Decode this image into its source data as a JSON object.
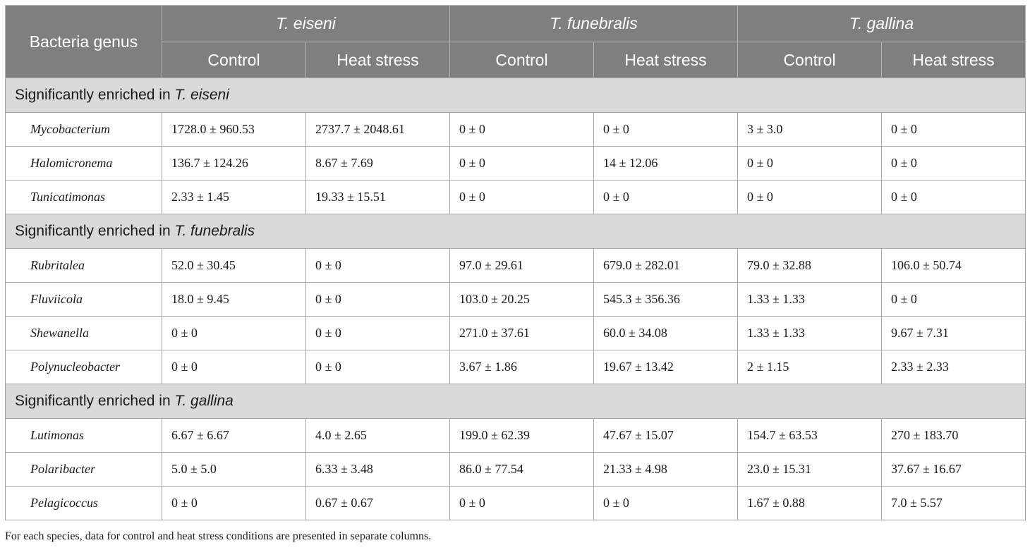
{
  "header": {
    "genus_label": "Bacteria genus",
    "species": [
      "T. eiseni",
      "T. funebralis",
      "T. gallina"
    ],
    "conditions": [
      "Control",
      "Heat stress",
      "Control",
      "Heat stress",
      "Control",
      "Heat stress"
    ]
  },
  "sections": [
    {
      "prefix": "Significantly enriched in ",
      "species": "T. eiseni",
      "rows": [
        {
          "genus": "Mycobacterium",
          "values": [
            "1728.0 ± 960.53",
            "2737.7 ± 2048.61",
            "0 ± 0",
            "0 ± 0",
            "3 ± 3.0",
            "0 ± 0"
          ]
        },
        {
          "genus": "Halomicronema",
          "values": [
            "136.7 ± 124.26",
            "8.67 ± 7.69",
            "0 ± 0",
            "14 ± 12.06",
            "0 ± 0",
            "0 ± 0"
          ]
        },
        {
          "genus": "Tunicatimonas",
          "values": [
            "2.33 ± 1.45",
            "19.33 ± 15.51",
            "0 ± 0",
            "0 ± 0",
            "0 ± 0",
            "0 ± 0"
          ]
        }
      ]
    },
    {
      "prefix": "Significantly enriched in ",
      "species": "T. funebralis",
      "rows": [
        {
          "genus": "Rubritalea",
          "values": [
            "52.0 ± 30.45",
            "0 ± 0",
            "97.0 ± 29.61",
            "679.0 ± 282.01",
            "79.0 ± 32.88",
            "106.0 ± 50.74"
          ]
        },
        {
          "genus": "Fluviicola",
          "values": [
            "18.0 ± 9.45",
            "0 ± 0",
            "103.0 ± 20.25",
            "545.3 ± 356.36",
            "1.33 ± 1.33",
            "0 ± 0"
          ]
        },
        {
          "genus": "Shewanella",
          "values": [
            "0 ± 0",
            "0 ± 0",
            "271.0 ± 37.61",
            "60.0 ± 34.08",
            "1.33 ± 1.33",
            "9.67 ± 7.31"
          ]
        },
        {
          "genus": "Polynucleobacter",
          "values": [
            "0 ± 0",
            "0 ± 0",
            "3.67 ± 1.86",
            "19.67 ± 13.42",
            "2 ± 1.15",
            "2.33 ± 2.33"
          ]
        }
      ]
    },
    {
      "prefix": "Significantly enriched in ",
      "species": "T. gallina",
      "rows": [
        {
          "genus": "Lutimonas",
          "values": [
            "6.67 ± 6.67",
            "4.0 ± 2.65",
            "199.0 ± 62.39",
            "47.67 ± 15.07",
            "154.7 ± 63.53",
            "270 ± 183.70"
          ]
        },
        {
          "genus": "Polaribacter",
          "values": [
            "5.0 ± 5.0",
            "6.33 ± 3.48",
            "86.0 ± 77.54",
            "21.33 ± 4.98",
            "23.0 ± 15.31",
            "37.67 ± 16.67"
          ]
        },
        {
          "genus": "Pelagicoccus",
          "values": [
            "0 ± 0",
            "0.67 ± 0.67",
            "0 ± 0",
            "0 ± 0",
            "1.67 ± 0.88",
            "7.0 ± 5.57"
          ]
        }
      ]
    }
  ],
  "footnote": "For each species, data for control and heat stress conditions are presented in separate columns."
}
